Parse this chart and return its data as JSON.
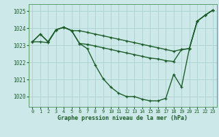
{
  "xlabel": "Graphe pression niveau de la mer (hPa)",
  "ylim": [
    1019.4,
    1025.4
  ],
  "xlim": [
    -0.5,
    23.5
  ],
  "bg_color": "#cce8e8",
  "grid_color": "#aad0d0",
  "line_color": "#1a5c28",
  "line1": [
    [
      0,
      1023.2
    ],
    [
      1,
      1023.65
    ],
    [
      2,
      1023.2
    ],
    [
      3,
      1023.9
    ],
    [
      4,
      1024.05
    ],
    [
      5,
      1023.85
    ],
    [
      6,
      1023.1
    ],
    [
      7,
      1022.8
    ],
    [
      8,
      1021.85
    ],
    [
      9,
      1021.05
    ],
    [
      10,
      1020.55
    ],
    [
      11,
      1020.2
    ],
    [
      12,
      1020.0
    ],
    [
      13,
      1020.0
    ],
    [
      14,
      1019.85
    ],
    [
      15,
      1019.75
    ],
    [
      16,
      1019.75
    ],
    [
      17,
      1019.9
    ],
    [
      18,
      1021.3
    ],
    [
      19,
      1020.55
    ],
    [
      20,
      1022.8
    ],
    [
      21,
      1024.4
    ],
    [
      22,
      1024.75
    ],
    [
      23,
      1025.05
    ]
  ],
  "line2": [
    [
      0,
      1023.2
    ],
    [
      1,
      1023.2
    ],
    [
      2,
      1023.15
    ],
    [
      3,
      1023.9
    ],
    [
      4,
      1024.05
    ],
    [
      5,
      1023.85
    ],
    [
      6,
      1023.1
    ],
    [
      7,
      1023.05
    ],
    [
      8,
      1022.95
    ],
    [
      9,
      1022.85
    ],
    [
      10,
      1022.75
    ],
    [
      11,
      1022.65
    ],
    [
      12,
      1022.55
    ],
    [
      13,
      1022.45
    ],
    [
      14,
      1022.35
    ],
    [
      15,
      1022.25
    ],
    [
      16,
      1022.2
    ],
    [
      17,
      1022.1
    ],
    [
      18,
      1022.05
    ],
    [
      19,
      1022.75
    ],
    [
      20,
      1022.8
    ],
    [
      21,
      1024.4
    ],
    [
      22,
      1024.75
    ],
    [
      23,
      1025.05
    ]
  ],
  "line3": [
    [
      0,
      1023.2
    ],
    [
      1,
      1023.65
    ],
    [
      2,
      1023.2
    ],
    [
      3,
      1023.9
    ],
    [
      4,
      1024.05
    ],
    [
      5,
      1023.85
    ],
    [
      6,
      1023.85
    ],
    [
      7,
      1023.75
    ],
    [
      8,
      1023.65
    ],
    [
      9,
      1023.55
    ],
    [
      10,
      1023.45
    ],
    [
      11,
      1023.35
    ],
    [
      12,
      1023.25
    ],
    [
      13,
      1023.15
    ],
    [
      14,
      1023.05
    ],
    [
      15,
      1022.95
    ],
    [
      16,
      1022.85
    ],
    [
      17,
      1022.75
    ],
    [
      18,
      1022.65
    ],
    [
      19,
      1022.75
    ],
    [
      20,
      1022.8
    ],
    [
      21,
      1024.4
    ],
    [
      22,
      1024.75
    ],
    [
      23,
      1025.05
    ]
  ],
  "xticks": [
    0,
    1,
    2,
    3,
    4,
    5,
    6,
    7,
    8,
    9,
    10,
    11,
    12,
    13,
    14,
    15,
    16,
    17,
    18,
    19,
    20,
    21,
    22,
    23
  ],
  "yticks": [
    1020,
    1021,
    1022,
    1023,
    1024,
    1025
  ],
  "marker": "+",
  "markersize": 3.5,
  "linewidth": 1.0
}
